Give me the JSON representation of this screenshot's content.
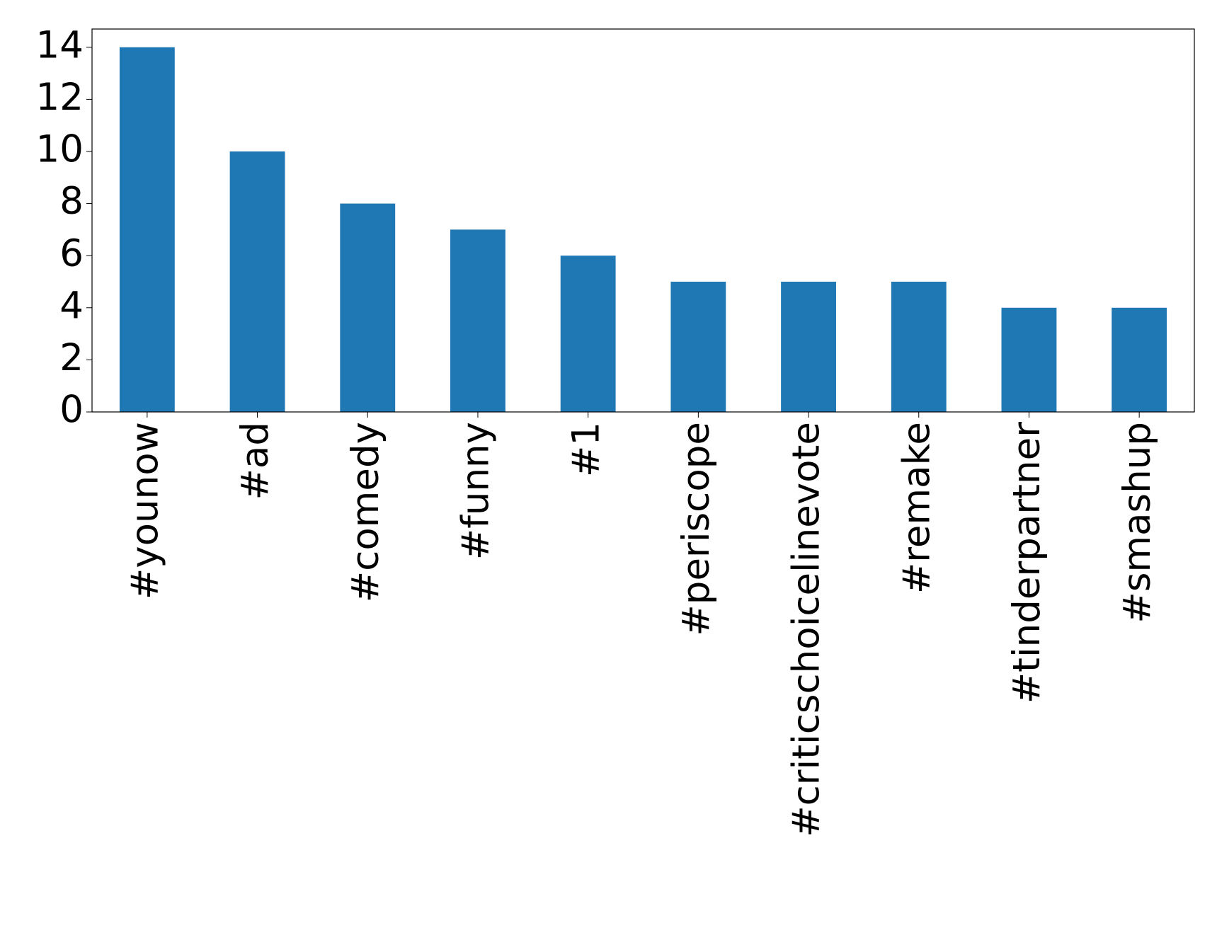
{
  "chart_data": {
    "type": "bar",
    "categories": [
      "#younow",
      "#ad",
      "#comedy",
      "#funny",
      "#1",
      "#periscope",
      "#criticschoicelinevote",
      "#remake",
      "#tinderpartner",
      "#smashup"
    ],
    "values": [
      14,
      10,
      8,
      7,
      6,
      5,
      5,
      5,
      4,
      4
    ],
    "color": "#1f77b4",
    "ylim": [
      0,
      14.7
    ],
    "yticks": [
      0,
      2,
      4,
      6,
      8,
      10,
      12,
      14
    ],
    "grid": false
  }
}
